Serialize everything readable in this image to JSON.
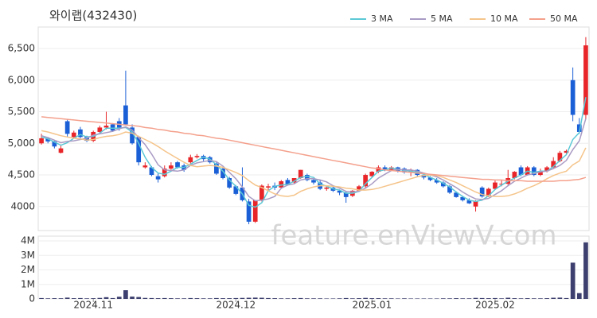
{
  "chart_data": {
    "type": "candlestick",
    "title": "와이랩(432430)",
    "watermark": "feature.enViewV.com",
    "categories": [
      null,
      null,
      null,
      null,
      null,
      null,
      null,
      null,
      "2024.11",
      null,
      null,
      null,
      null,
      null,
      null,
      null,
      null,
      null,
      null,
      null,
      null,
      null,
      null,
      null,
      null,
      null,
      null,
      null,
      null,
      null,
      "2024.12",
      null,
      null,
      null,
      null,
      null,
      null,
      null,
      null,
      null,
      null,
      null,
      null,
      null,
      null,
      null,
      null,
      null,
      null,
      null,
      null,
      "2025.01",
      null,
      null,
      null,
      null,
      null,
      null,
      null,
      null,
      null,
      null,
      null,
      null,
      null,
      null,
      null,
      null,
      null,
      null,
      "2025.02",
      null,
      null,
      null,
      null,
      null,
      null,
      null,
      null,
      null,
      null,
      null,
      null,
      null,
      null
    ],
    "open": [
      5000,
      5080,
      5030,
      4850,
      5350,
      5100,
      5220,
      5100,
      5040,
      5180,
      5250,
      5300,
      5350,
      5600,
      5250,
      5100,
      4620,
      4620,
      4480,
      4480,
      4600,
      4700,
      4650,
      4700,
      4780,
      4800,
      4780,
      4680,
      4600,
      4450,
      4320,
      4300,
      4080,
      3760,
      4100,
      4300,
      4330,
      4300,
      4420,
      4380,
      4450,
      4500,
      4420,
      4380,
      4280,
      4300,
      4250,
      4220,
      4170,
      4250,
      4320,
      4480,
      4550,
      4620,
      4580,
      4620,
      4600,
      4540,
      4580,
      4500,
      4460,
      4420,
      4380,
      4320,
      4220,
      4150,
      4100,
      4000,
      4300,
      4160,
      4280,
      4350,
      4360,
      4450,
      4620,
      4500,
      4620,
      4500,
      4560,
      4620,
      4720,
      4850,
      6000,
      5300,
      5450
    ],
    "high": [
      5150,
      5100,
      5040,
      4960,
      5380,
      5200,
      5260,
      5120,
      5200,
      5280,
      5500,
      5320,
      5400,
      6150,
      5300,
      5120,
      4700,
      4640,
      4520,
      4650,
      4700,
      4720,
      4680,
      4820,
      4830,
      4820,
      4800,
      4700,
      4620,
      4470,
      4340,
      4620,
      4120,
      4100,
      4350,
      4360,
      4380,
      4420,
      4450,
      4450,
      4580,
      4520,
      4440,
      4420,
      4330,
      4320,
      4270,
      4240,
      4260,
      4340,
      4520,
      4560,
      4650,
      4650,
      4640,
      4630,
      4620,
      4600,
      4590,
      4520,
      4480,
      4450,
      4400,
      4340,
      4240,
      4170,
      4130,
      4100,
      4320,
      4300,
      4410,
      4420,
      4580,
      4560,
      4650,
      4640,
      4640,
      4600,
      4640,
      4780,
      4880,
      4900,
      6200,
      5400,
      6680
    ],
    "low": [
      4980,
      5000,
      4920,
      4840,
      5100,
      5080,
      5080,
      5020,
      5020,
      5150,
      5220,
      5180,
      5200,
      5300,
      4980,
      4650,
      4600,
      4480,
      4380,
      4460,
      4580,
      4600,
      4550,
      4680,
      4760,
      4720,
      4680,
      4500,
      4430,
      4280,
      4180,
      4080,
      3720,
      3740,
      4080,
      4250,
      4260,
      4280,
      4340,
      4360,
      4440,
      4400,
      4350,
      4260,
      4250,
      4230,
      4180,
      4060,
      4150,
      4230,
      4300,
      4460,
      4530,
      4560,
      4560,
      4540,
      4520,
      4480,
      4480,
      4430,
      4400,
      4360,
      4300,
      4200,
      4140,
      4080,
      4040,
      3920,
      4140,
      4150,
      4270,
      4320,
      4340,
      4430,
      4480,
      4490,
      4480,
      4480,
      4540,
      4600,
      4700,
      4820,
      5350,
      5150,
      5380
    ],
    "close": [
      5080,
      5030,
      4950,
      4920,
      5150,
      5170,
      5100,
      5040,
      5180,
      5250,
      5280,
      5200,
      5250,
      5300,
      5000,
      4700,
      4650,
      4500,
      4430,
      4600,
      4650,
      4620,
      4580,
      4780,
      4800,
      4750,
      4700,
      4520,
      4450,
      4300,
      4200,
      4100,
      3760,
      4100,
      4330,
      4320,
      4300,
      4400,
      4350,
      4450,
      4580,
      4420,
      4380,
      4280,
      4300,
      4250,
      4220,
      4150,
      4250,
      4320,
      4500,
      4550,
      4620,
      4580,
      4620,
      4560,
      4540,
      4580,
      4500,
      4460,
      4420,
      4380,
      4320,
      4220,
      4150,
      4100,
      4050,
      4080,
      4160,
      4280,
      4380,
      4360,
      4450,
      4550,
      4500,
      4620,
      4500,
      4560,
      4620,
      4720,
      4850,
      4880,
      5450,
      5180,
      6550
    ],
    "volume": [
      60000,
      40000,
      50000,
      45000,
      90000,
      50000,
      60000,
      40000,
      50000,
      70000,
      120000,
      60000,
      150000,
      600000,
      160000,
      130000,
      70000,
      60000,
      50000,
      60000,
      50000,
      40000,
      40000,
      60000,
      50000,
      40000,
      40000,
      60000,
      50000,
      50000,
      60000,
      70000,
      80000,
      90000,
      80000,
      60000,
      50000,
      40000,
      40000,
      50000,
      60000,
      40000,
      40000,
      40000,
      30000,
      30000,
      40000,
      60000,
      40000,
      50000,
      70000,
      50000,
      50000,
      40000,
      40000,
      30000,
      40000,
      30000,
      30000,
      30000,
      30000,
      30000,
      40000,
      40000,
      50000,
      40000,
      40000,
      70000,
      60000,
      50000,
      60000,
      40000,
      80000,
      50000,
      40000,
      50000,
      40000,
      40000,
      50000,
      80000,
      90000,
      60000,
      2500000,
      400000,
      3900000
    ],
    "up_color": "#e8262a",
    "down_color": "#1a5fd6",
    "volume_color": "#3d3f6e",
    "series": [
      {
        "name": "3 MA",
        "color": "#5bc8d6",
        "values": [
          5100,
          5070,
          5020,
          4970,
          5010,
          5080,
          5140,
          5100,
          5110,
          5160,
          5240,
          5240,
          5240,
          5250,
          5180,
          5000,
          4780,
          4620,
          4530,
          4510,
          4560,
          4620,
          4620,
          4670,
          4730,
          4780,
          4750,
          4660,
          4560,
          4420,
          4320,
          4200,
          4020,
          3990,
          4060,
          4250,
          4320,
          4340,
          4350,
          4400,
          4460,
          4480,
          4460,
          4360,
          4320,
          4280,
          4260,
          4210,
          4210,
          4240,
          4360,
          4460,
          4560,
          4580,
          4610,
          4590,
          4570,
          4560,
          4540,
          4510,
          4460,
          4420,
          4370,
          4310,
          4230,
          4160,
          4100,
          4080,
          4100,
          4170,
          4270,
          4340,
          4400,
          4450,
          4500,
          4560,
          4540,
          4560,
          4560,
          4630,
          4730,
          4820,
          5060,
          5170,
          5730
        ]
      },
      {
        "name": "5 MA",
        "color": "#a99bc4",
        "values": [
          5120,
          5090,
          5050,
          5010,
          5030,
          5040,
          5060,
          5080,
          5130,
          5150,
          5170,
          5190,
          5230,
          5260,
          5210,
          5090,
          4980,
          4830,
          4660,
          4580,
          4570,
          4560,
          4580,
          4650,
          4690,
          4710,
          4730,
          4710,
          4640,
          4540,
          4440,
          4310,
          4160,
          4090,
          4100,
          4120,
          4160,
          4290,
          4340,
          4360,
          4420,
          4440,
          4440,
          4420,
          4390,
          4330,
          4290,
          4240,
          4230,
          4240,
          4290,
          4360,
          4450,
          4510,
          4570,
          4590,
          4580,
          4580,
          4560,
          4530,
          4500,
          4470,
          4420,
          4360,
          4300,
          4230,
          4170,
          4120,
          4110,
          4130,
          4190,
          4250,
          4330,
          4400,
          4450,
          4500,
          4520,
          4550,
          4560,
          4600,
          4650,
          4730,
          4900,
          5040,
          5390
        ]
      },
      {
        "name": "10 MA",
        "color": "#f5c48a",
        "values": [
          5200,
          5180,
          5150,
          5120,
          5100,
          5080,
          5070,
          5050,
          5060,
          5090,
          5110,
          5120,
          5140,
          5180,
          5160,
          5110,
          5060,
          5010,
          4950,
          4880,
          4820,
          4760,
          4700,
          4650,
          4630,
          4640,
          4650,
          4640,
          4620,
          4580,
          4540,
          4490,
          4410,
          4340,
          4300,
          4250,
          4200,
          4170,
          4160,
          4180,
          4240,
          4280,
          4310,
          4330,
          4330,
          4320,
          4310,
          4290,
          4280,
          4260,
          4260,
          4270,
          4290,
          4320,
          4350,
          4380,
          4410,
          4440,
          4470,
          4490,
          4500,
          4490,
          4460,
          4420,
          4380,
          4330,
          4280,
          4230,
          4190,
          4170,
          4160,
          4160,
          4170,
          4200,
          4240,
          4290,
          4330,
          4380,
          4440,
          4490,
          4530,
          4560,
          4660,
          4720,
          4930
        ]
      },
      {
        "name": "50 MA",
        "color": "#f4a08c",
        "values": [
          5420,
          5410,
          5400,
          5390,
          5380,
          5370,
          5360,
          5350,
          5340,
          5330,
          5320,
          5310,
          5300,
          5290,
          5280,
          5270,
          5250,
          5240,
          5220,
          5210,
          5190,
          5180,
          5160,
          5150,
          5130,
          5120,
          5100,
          5080,
          5070,
          5050,
          5030,
          5010,
          4990,
          4970,
          4950,
          4930,
          4910,
          4890,
          4870,
          4850,
          4830,
          4810,
          4790,
          4770,
          4750,
          4730,
          4710,
          4690,
          4670,
          4650,
          4630,
          4610,
          4600,
          4580,
          4570,
          4560,
          4550,
          4540,
          4530,
          4520,
          4510,
          4500,
          4490,
          4480,
          4470,
          4460,
          4450,
          4440,
          4430,
          4430,
          4420,
          4420,
          4410,
          4410,
          4410,
          4400,
          4400,
          4400,
          4400,
          4400,
          4410,
          4410,
          4420,
          4430,
          4460
        ]
      }
    ],
    "ylim": [
      3620,
      6840
    ],
    "yticks": [
      4000,
      {
        "value": 4500,
        "label": "4,500"
      },
      {
        "value": 5000,
        "label": "5,000"
      },
      {
        "value": 5500,
        "label": "5,500"
      },
      {
        "value": 6000,
        "label": "6,000"
      },
      {
        "value": 6500,
        "label": "6,500"
      }
    ],
    "volume_lim": [
      0,
      4330000
    ],
    "volume_ticks": [
      0,
      {
        "value": 1000000,
        "label": "1M"
      },
      {
        "value": 2000000,
        "label": "2M"
      },
      {
        "value": 3000000,
        "label": "3M"
      },
      {
        "value": 4000000,
        "label": "4M"
      }
    ],
    "grid": true,
    "legend": "top-right"
  }
}
